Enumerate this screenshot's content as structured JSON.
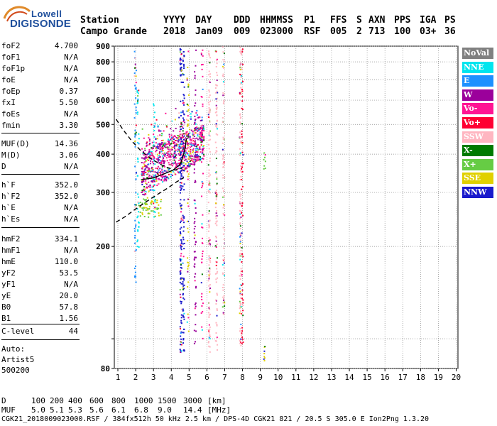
{
  "logo": {
    "top": "Lowell",
    "bottom": "DIGISONDE"
  },
  "header": {
    "columns": [
      {
        "label": "Station",
        "value": "Campo Grande"
      },
      {
        "label": "YYYY",
        "value": "2018"
      },
      {
        "label": "DAY",
        "value": "Jan09"
      },
      {
        "label": "DDD",
        "value": "009"
      },
      {
        "label": "HHMMSS",
        "value": "023000"
      },
      {
        "label": "P1",
        "value": "RSF"
      },
      {
        "label": "FFS",
        "value": "005"
      },
      {
        "label": "S",
        "value": "2"
      },
      {
        "label": "AXN",
        "value": "713"
      },
      {
        "label": "PPS",
        "value": "100"
      },
      {
        "label": "IGA",
        "value": "03+"
      },
      {
        "label": "PS",
        "value": "36"
      }
    ]
  },
  "parameters": [
    {
      "label": "foF2",
      "value": "4.700"
    },
    {
      "label": "foF1",
      "value": "N/A"
    },
    {
      "label": "foF1p",
      "value": "N/A"
    },
    {
      "label": "foE",
      "value": "N/A"
    },
    {
      "label": "foEp",
      "value": "0.37"
    },
    {
      "label": "fxI",
      "value": "5.50"
    },
    {
      "label": "foEs",
      "value": "N/A"
    },
    {
      "label": "fmin",
      "value": "3.30"
    },
    {
      "label": "MUF(D)",
      "value": "14.36"
    },
    {
      "label": "M(D)",
      "value": "3.06"
    },
    {
      "label": "D",
      "value": "N/A"
    },
    {
      "label": "h`F",
      "value": "352.0"
    },
    {
      "label": "h`F2",
      "value": "352.0"
    },
    {
      "label": "h`E",
      "value": "N/A"
    },
    {
      "label": "h`Es",
      "value": "N/A"
    },
    {
      "label": "hmF2",
      "value": "334.1"
    },
    {
      "label": "hmF1",
      "value": "N/A"
    },
    {
      "label": "hmE",
      "value": "110.0"
    },
    {
      "label": "yF2",
      "value": "53.5"
    },
    {
      "label": "yF1",
      "value": "N/A"
    },
    {
      "label": "yE",
      "value": "20.0"
    },
    {
      "label": "B0",
      "value": "57.8"
    },
    {
      "label": "B1",
      "value": "1.56"
    },
    {
      "label": "C-level",
      "value": "44"
    }
  ],
  "auto": {
    "line1": "Auto:",
    "line2": "Artist5",
    "line3": "500200"
  },
  "legend": [
    {
      "label": "NoVal",
      "color": "#808080"
    },
    {
      "label": "NNE",
      "color": "#00e5ee"
    },
    {
      "label": "E",
      "color": "#1e90ff"
    },
    {
      "label": "W",
      "color": "#9b009b"
    },
    {
      "label": "Vo-",
      "color": "#ff1493"
    },
    {
      "label": "Vo+",
      "color": "#ff0033"
    },
    {
      "label": "SSW",
      "color": "#ffb6c1"
    },
    {
      "label": "X-",
      "color": "#007a00"
    },
    {
      "label": "X+",
      "color": "#66cc44"
    },
    {
      "label": "SSE",
      "color": "#e0d000"
    },
    {
      "label": "NNW",
      "color": "#1a1acc"
    }
  ],
  "scale": {
    "d_label": "D",
    "d_values": [
      "100",
      "200",
      "400",
      "600",
      "800",
      "1000",
      "1500",
      "3000",
      "[km]"
    ],
    "muf_label": "MUF",
    "muf_values": [
      "5.0",
      "5.1",
      "5.3",
      "5.6",
      "6.1",
      "6.8",
      "9.0",
      "14.4",
      "[MHz]"
    ]
  },
  "footer": "CGK21_2018009023000.RSF / 384fx512h 50 kHz 2.5 km / DPS-4D CGK21 821 / 20.5 S 305.0 E Ion2Png 1.3.20",
  "chart_data": {
    "type": "scatter",
    "title": "",
    "xlabel": "",
    "ylabel": "",
    "xlim": [
      1,
      20
    ],
    "ylim": [
      80,
      900
    ],
    "xticks": [
      1,
      2,
      3,
      4,
      5,
      6,
      7,
      8,
      9,
      10,
      11,
      12,
      13,
      14,
      15,
      16,
      17,
      18,
      19,
      20
    ],
    "yticks": [
      80,
      100,
      200,
      300,
      400,
      500,
      600,
      700,
      800,
      900
    ],
    "ytick_labels": [
      80,
      200,
      300,
      400,
      500,
      600,
      700,
      800,
      900
    ],
    "y_scale": "log",
    "grid": true,
    "echo_clusters": [
      {
        "name": "F2 trace",
        "color": "#ff1493",
        "f_range": [
          2.3,
          5.8
        ],
        "h_range": [
          300,
          450
        ]
      },
      {
        "name": "F2 trace upper",
        "color": "#9b009b",
        "f_range": [
          2.5,
          5.6
        ],
        "h_range": [
          340,
          470
        ]
      },
      {
        "name": "vertical column",
        "color": "#1a1acc",
        "f_range": [
          4.5,
          4.7
        ],
        "h_range": [
          80,
          900
        ]
      },
      {
        "name": "SSW band",
        "color": "#ffb6c1",
        "f_range": [
          5.8,
          7.2
        ],
        "h_range": [
          80,
          900
        ]
      },
      {
        "name": "second hop",
        "color": "#ffb6c1",
        "f_range": [
          7.7,
          8.0
        ],
        "h_range": [
          90,
          900
        ]
      }
    ],
    "profile_curves": [
      {
        "name": "profile upper",
        "style": "dashed",
        "points": [
          [
            0.9,
            520
          ],
          [
            1.3,
            480
          ],
          [
            1.8,
            440
          ],
          [
            2.3,
            410
          ],
          [
            2.9,
            385
          ],
          [
            3.6,
            365
          ],
          [
            4.2,
            355
          ],
          [
            4.6,
            360
          ]
        ]
      },
      {
        "name": "profile lower",
        "style": "dashed",
        "points": [
          [
            0.9,
            240
          ],
          [
            1.4,
            250
          ],
          [
            2.0,
            265
          ],
          [
            2.6,
            280
          ],
          [
            3.2,
            295
          ],
          [
            3.8,
            310
          ],
          [
            4.3,
            325
          ],
          [
            4.7,
            335
          ]
        ]
      },
      {
        "name": "F2 trace solid",
        "style": "solid",
        "points": [
          [
            2.3,
            330
          ],
          [
            3.0,
            335
          ],
          [
            3.6,
            345
          ],
          [
            4.1,
            355
          ],
          [
            4.5,
            370
          ],
          [
            4.75,
            410
          ],
          [
            4.85,
            450
          ]
        ]
      }
    ]
  }
}
